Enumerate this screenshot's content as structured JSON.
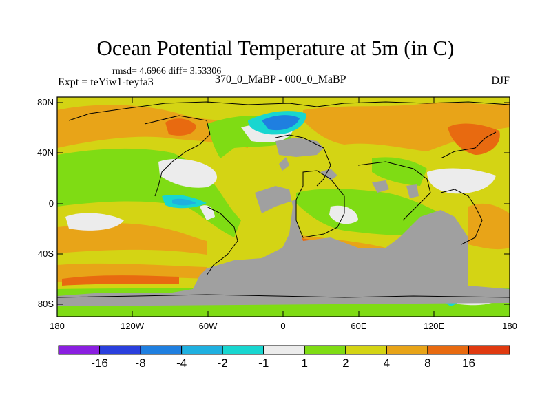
{
  "title": "Ocean Potential Temperature at 5m (in C)",
  "stats": "rmsd= 4.6966 diff= 3.53306",
  "experiment": "Expt = teYiw1-teyfa3",
  "subtitle": "370_0_MaBP - 000_0_MaBP",
  "season": "DJF",
  "lat_labels": [
    "80N",
    "40N",
    "0",
    "40S",
    "80S"
  ],
  "lon_labels": [
    "180",
    "120W",
    "60W",
    "0",
    "60E",
    "120E",
    "180"
  ],
  "colorbar": {
    "labels": [
      "-16",
      "-8",
      "-4",
      "-2",
      "-1",
      "1",
      "2",
      "4",
      "8",
      "16"
    ],
    "colors": [
      "#8a1fe0",
      "#2a3fdd",
      "#1f7fe0",
      "#1fb0e0",
      "#18d6d0",
      "#ececec",
      "#7fdc14",
      "#d4d414",
      "#e8a418",
      "#e86a10",
      "#e03a10"
    ]
  },
  "land_color": "#a0a0a0"
}
